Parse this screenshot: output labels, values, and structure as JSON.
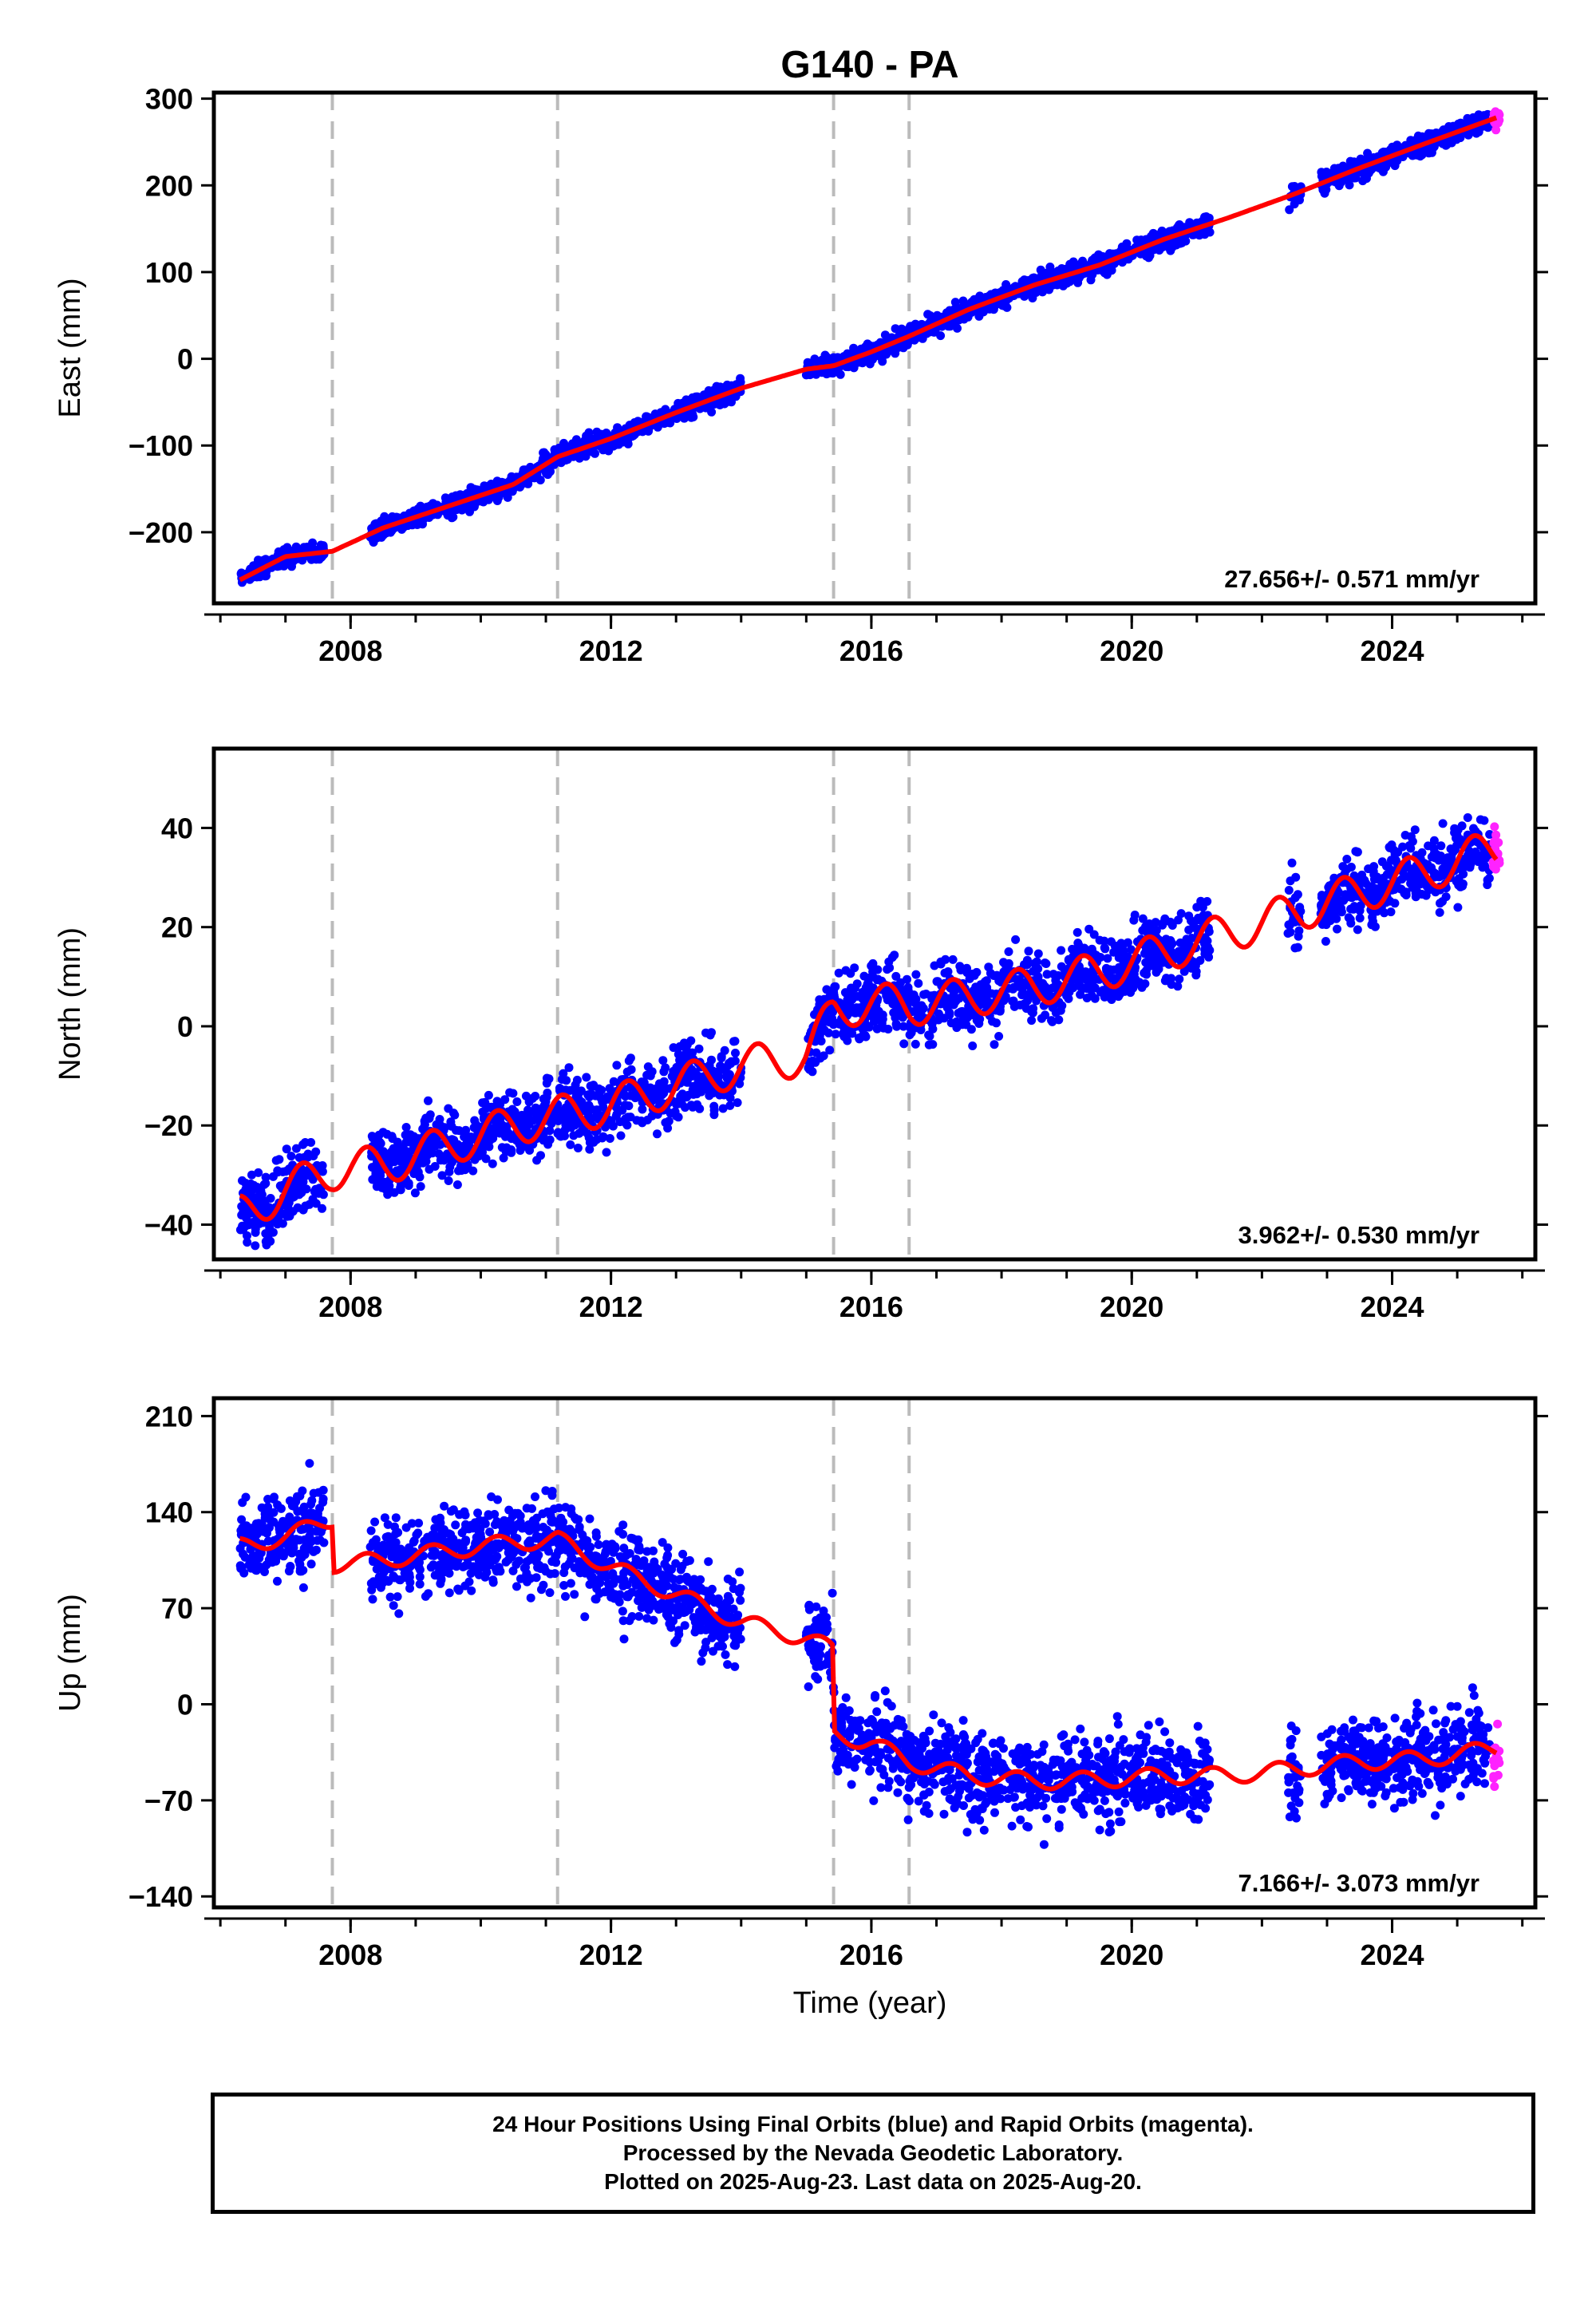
{
  "title": "G140 - PA",
  "colors": {
    "final": "#0000ff",
    "rapid": "#ff22ff",
    "model": "#ff0000",
    "offset_line": "#bbbbbb"
  },
  "chart_data": [
    {
      "type": "scatter",
      "name": "east",
      "ylabel": "East (mm)",
      "xlabel": "",
      "x_ticks": [
        2008,
        2012,
        2016,
        2020,
        2024
      ],
      "y_ticks": [
        -200,
        -100,
        0,
        100,
        200,
        300
      ],
      "xlim": [
        2005.9,
        2026.2
      ],
      "ylim": [
        -282,
        307
      ],
      "rate_label": "27.656+/- 0.571 mm/yr",
      "rate_mm_per_yr": 27.656,
      "offset_epochs": [
        2007.72,
        2011.18,
        2015.42,
        2016.58
      ],
      "final_orbit_segments": [
        [
          2006.3,
          2007.6
        ],
        [
          2008.3,
          2014.0
        ],
        [
          2015.0,
          2021.2
        ],
        [
          2022.4,
          2022.6
        ],
        [
          2022.9,
          2025.5
        ]
      ],
      "rapid_orbit_range": [
        2025.55,
        2025.65
      ],
      "model_curve": {
        "x": [
          2006.3,
          2007.0,
          2007.72,
          2008.5,
          2009.5,
          2010.5,
          2011.18,
          2012.0,
          2013.0,
          2014.0,
          2015.0,
          2015.42,
          2016.0,
          2016.58,
          2017.5,
          2018.5,
          2019.5,
          2020.5,
          2021.5,
          2022.5,
          2023.5,
          2024.5,
          2025.6
        ],
        "y": [
          -255,
          -228,
          -222,
          -195,
          -170,
          -145,
          -113,
          -92,
          -62,
          -34,
          -12,
          -8,
          8,
          26,
          57,
          85,
          108,
          138,
          163,
          190,
          220,
          248,
          278
        ]
      },
      "scatter_amplitude_mm": 10
    },
    {
      "type": "scatter",
      "name": "north",
      "ylabel": "North (mm)",
      "xlabel": "",
      "x_ticks": [
        2008,
        2012,
        2016,
        2020,
        2024
      ],
      "y_ticks": [
        -40,
        -20,
        0,
        20,
        40
      ],
      "xlim": [
        2005.9,
        2026.2
      ],
      "ylim": [
        -47,
        56
      ],
      "rate_label": "3.962+/- 0.530 mm/yr",
      "rate_mm_per_yr": 3.962,
      "offset_epochs": [
        2007.72,
        2011.18,
        2015.42,
        2016.58
      ],
      "final_orbit_segments": [
        [
          2006.3,
          2007.6
        ],
        [
          2008.3,
          2014.0
        ],
        [
          2015.0,
          2021.2
        ],
        [
          2022.4,
          2022.6
        ],
        [
          2022.9,
          2025.5
        ]
      ],
      "rapid_orbit_range": [
        2025.55,
        2025.65
      ],
      "model_curve": {
        "x": [
          2006.3,
          2007.0,
          2007.72,
          2008.5,
          2009.5,
          2010.5,
          2011.18,
          2012.0,
          2013.0,
          2014.0,
          2015.0,
          2015.42,
          2016.0,
          2016.58,
          2017.5,
          2018.5,
          2019.5,
          2020.5,
          2021.5,
          2022.5,
          2023.5,
          2024.5,
          2025.6
        ],
        "y": [
          -38,
          -33,
          -29,
          -28,
          -24,
          -20,
          -18,
          -16,
          -12,
          -8,
          -6,
          3,
          5,
          4,
          6,
          8,
          11,
          15,
          19,
          23,
          27,
          31,
          36
        ]
      },
      "seasonal_amplitude_mm": 4,
      "scatter_amplitude_mm": 6
    },
    {
      "type": "scatter",
      "name": "up",
      "ylabel": "Up (mm)",
      "xlabel": "Time (year)",
      "x_ticks": [
        2008,
        2012,
        2016,
        2020,
        2024
      ],
      "y_ticks": [
        -140,
        -70,
        0,
        70,
        140,
        210
      ],
      "xlim": [
        2005.9,
        2026.2
      ],
      "ylim": [
        -148,
        223
      ],
      "rate_label": "7.166+/- 3.073 mm/yr",
      "rate_mm_per_yr": 7.166,
      "offset_epochs": [
        2007.72,
        2011.18,
        2015.42,
        2016.58
      ],
      "final_orbit_segments": [
        [
          2006.3,
          2007.6
        ],
        [
          2008.3,
          2014.0
        ],
        [
          2015.0,
          2021.2
        ],
        [
          2022.4,
          2022.6
        ],
        [
          2022.9,
          2025.5
        ]
      ],
      "rapid_orbit_range": [
        2025.55,
        2025.65
      ],
      "model_curve": {
        "x": [
          2006.3,
          2007.0,
          2007.72,
          2007.73,
          2008.5,
          2009.5,
          2010.5,
          2011.18,
          2012.0,
          2013.0,
          2014.0,
          2015.0,
          2015.41,
          2015.43,
          2016.0,
          2016.58,
          2017.5,
          2018.5,
          2019.5,
          2020.5,
          2021.5,
          2022.5,
          2023.5,
          2024.5,
          2025.6
        ],
        "y": [
          115,
          122,
          135,
          102,
          105,
          112,
          118,
          120,
          100,
          80,
          60,
          48,
          40,
          -22,
          -28,
          -42,
          -52,
          -56,
          -55,
          -52,
          -52,
          -47,
          -42,
          -40,
          -32
        ]
      },
      "seasonal_amplitude_mm": 6,
      "scatter_amplitude_mm": 28
    }
  ],
  "footer": {
    "line1": "24 Hour Positions Using Final Orbits (blue) and Rapid Orbits (magenta).",
    "line2": "Processed by the Nevada Geodetic Laboratory.",
    "line3": "Plotted on 2025-Aug-23. Last data on 2025-Aug-20."
  }
}
